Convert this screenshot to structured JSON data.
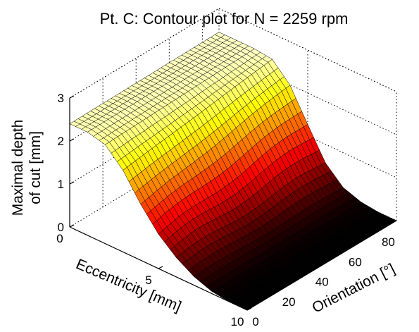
{
  "chart_data": {
    "type": "surface",
    "title": "Pt. C: Contour plot for N = 2259 rpm",
    "xlabel": "Eccentricity [mm]",
    "ylabel": "Orientation [°]",
    "zlabel_line1": "Maximal depth",
    "zlabel_line2": "of cut [mm]",
    "xlim": [
      0,
      10
    ],
    "ylim": [
      0,
      90
    ],
    "zlim": [
      0,
      3
    ],
    "x_ticks": [
      "0",
      "5",
      "10"
    ],
    "y_ticks": [
      "0",
      "20",
      "40",
      "60",
      "80"
    ],
    "z_ticks": [
      "0",
      "1",
      "2",
      "3"
    ],
    "grid": true,
    "colormap": "hot",
    "surface_profile": {
      "description_free": true,
      "eccentricity": [
        0,
        1,
        2,
        3,
        4,
        5,
        6,
        7,
        8,
        9,
        10
      ],
      "depth_at_orientation_0": [
        2.4,
        2.4,
        2.3,
        1.9,
        1.3,
        0.8,
        0.45,
        0.2,
        0.05,
        0.0,
        0.0
      ],
      "depth_at_orientation_90": [
        2.45,
        2.45,
        2.45,
        2.4,
        2.0,
        1.3,
        0.6,
        0.2,
        0.05,
        0.0,
        0.0
      ]
    }
  }
}
